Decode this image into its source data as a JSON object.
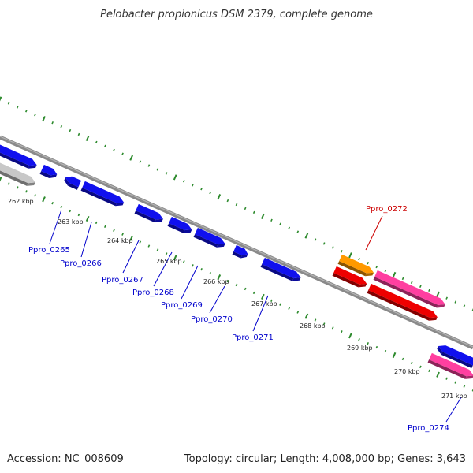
{
  "title": "Pelobacter propionicus DSM 2379, complete genome",
  "footer": {
    "accession": "Accession: NC_008609",
    "topology": "Topology: circular; Length: 4,008,000 bp; Genes: 3,643"
  },
  "colors": {
    "blue": "#1010ee",
    "red": "#ee0000",
    "pink": "#ff3fa0",
    "orange": "#ff9900",
    "grey": "#c8c8c8",
    "backbone": "#8a8a8a",
    "tick": "#2e8b2e",
    "label_blue": "#0000cc",
    "label_red": "#cc0000"
  },
  "kbp_ticks": [
    "262 kbp",
    "263 kbp",
    "264 kbp",
    "265 kbp",
    "266 kbp",
    "267 kbp",
    "268 kbp",
    "269 kbp",
    "270 kbp",
    "271 kbp"
  ],
  "genes": [
    "Ppro_0265",
    "Ppro_0266",
    "Ppro_0267",
    "Ppro_0268",
    "Ppro_0269",
    "Ppro_0270",
    "Ppro_0271",
    "Ppro_0272",
    "Ppro_0274"
  ]
}
